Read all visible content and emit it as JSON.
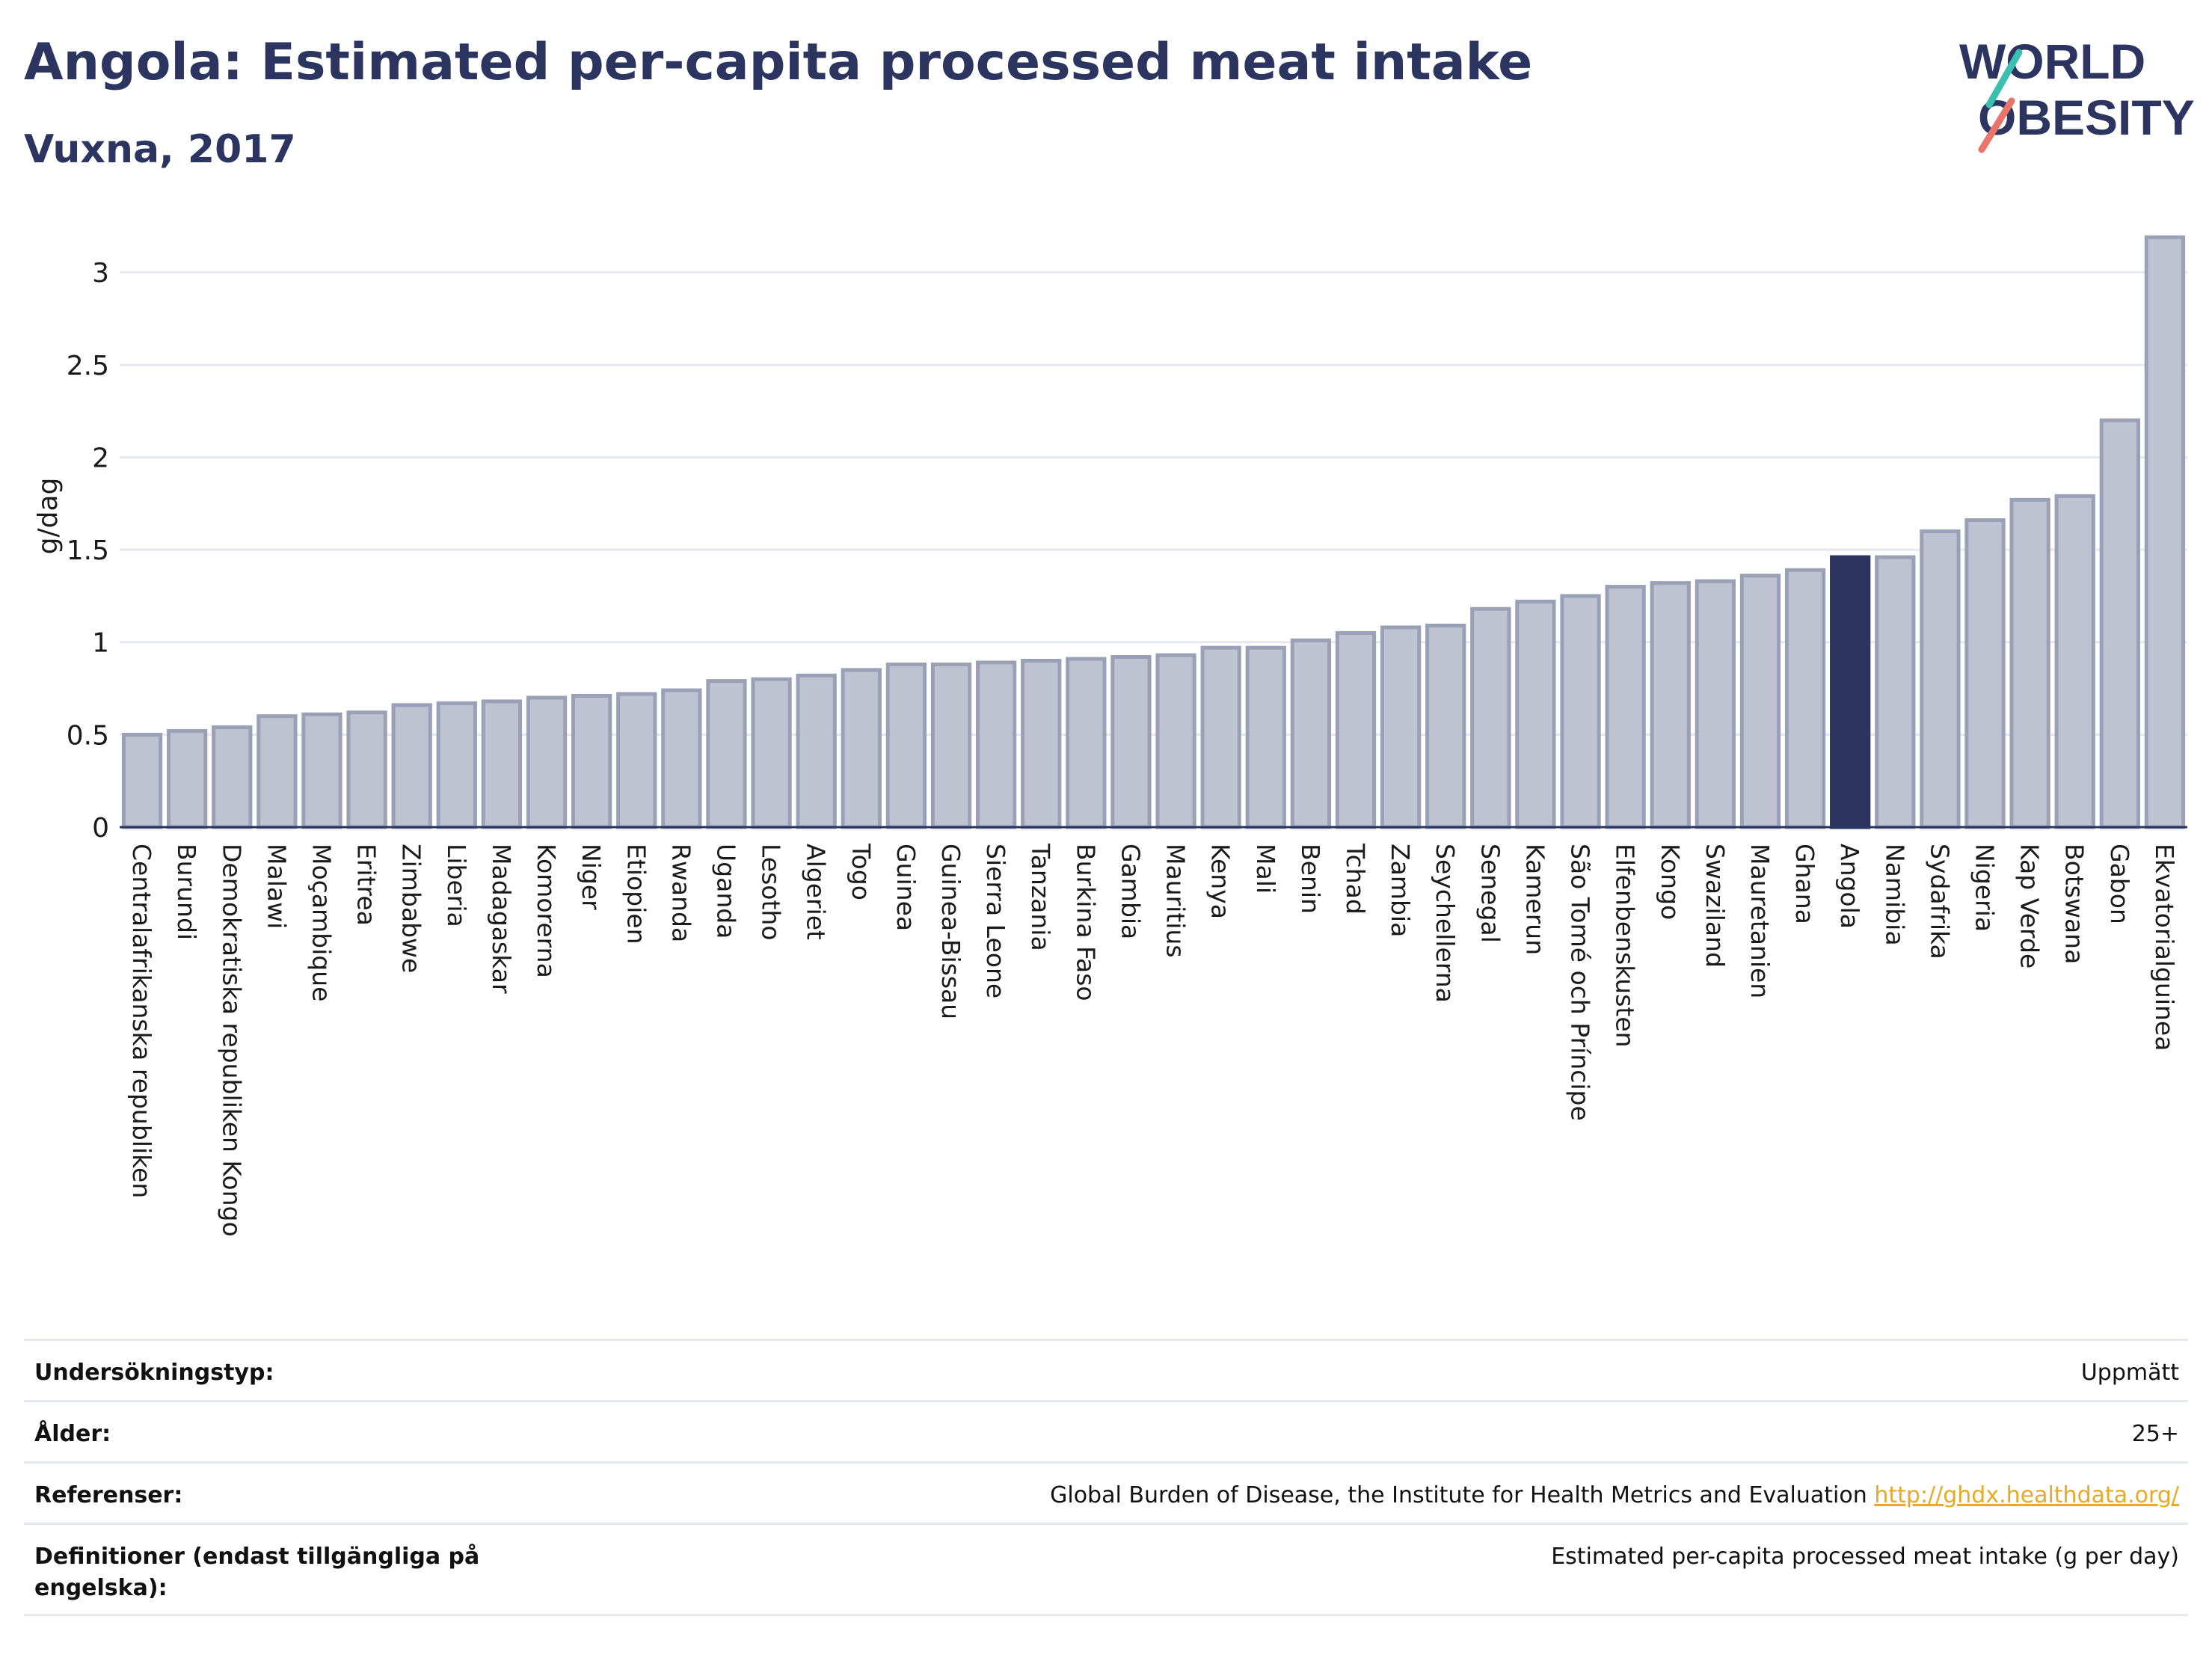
{
  "header": {
    "title": "Angola: Estimated per-capita processed meat intake",
    "subtitle": "Vuxna, 2017"
  },
  "logo": {
    "line1": "WORLD",
    "line2": "OBESITY"
  },
  "chart_data": {
    "type": "bar",
    "ylabel": "g/dag",
    "ylim": [
      0,
      3.3
    ],
    "yticks": [
      0,
      0.5,
      1,
      1.5,
      2,
      2.5,
      3
    ],
    "ytick_labels": [
      "0",
      "0.5",
      "1",
      "1.5",
      "2",
      "2.5",
      "3"
    ],
    "highlight": "Angola",
    "colors": {
      "bar": "#bfc3d1",
      "bar_border": "#9aa0b6",
      "highlight": "#2c3560"
    },
    "categories": [
      "Centralafrikanska republiken",
      "Burundi",
      "Demokratiska republiken Kongo",
      "Malawi",
      "Moçambique",
      "Eritrea",
      "Zimbabwe",
      "Liberia",
      "Madagaskar",
      "Komorerna",
      "Niger",
      "Etiopien",
      "Rwanda",
      "Uganda",
      "Lesotho",
      "Algeriet",
      "Togo",
      "Guinea",
      "Guinea-Bissau",
      "Sierra Leone",
      "Tanzania",
      "Burkina Faso",
      "Gambia",
      "Mauritius",
      "Kenya",
      "Mali",
      "Benin",
      "Tchad",
      "Zambia",
      "Seychellerna",
      "Senegal",
      "Kamerun",
      "São Tomé och Príncipe",
      "Elfenbenskusten",
      "Kongo",
      "Swaziland",
      "Mauretanien",
      "Ghana",
      "Angola",
      "Namibia",
      "Sydafrika",
      "Nigeria",
      "Kap Verde",
      "Botswana",
      "Gabon",
      "Ekvatorialguinea"
    ],
    "values": [
      0.5,
      0.52,
      0.54,
      0.6,
      0.61,
      0.62,
      0.66,
      0.67,
      0.68,
      0.7,
      0.71,
      0.72,
      0.74,
      0.79,
      0.8,
      0.82,
      0.85,
      0.88,
      0.88,
      0.89,
      0.9,
      0.91,
      0.92,
      0.93,
      0.97,
      0.97,
      1.01,
      1.05,
      1.08,
      1.09,
      1.18,
      1.22,
      1.25,
      1.3,
      1.32,
      1.33,
      1.36,
      1.39,
      1.46,
      1.46,
      1.6,
      1.66,
      1.77,
      1.79,
      2.2,
      3.19
    ]
  },
  "info": [
    {
      "label": "Undersökningstyp:",
      "value": "Uppmätt"
    },
    {
      "label": "Ålder:",
      "value": "25+"
    },
    {
      "label": "Referenser:",
      "value": "Global Burden of Disease, the Institute for Health Metrics and Evaluation",
      "link": "http://ghdx.healthdata.org/"
    },
    {
      "label": "Definitioner (endast tillgängliga på engelska):",
      "value": "Estimated per-capita processed meat intake (g per day)"
    }
  ]
}
